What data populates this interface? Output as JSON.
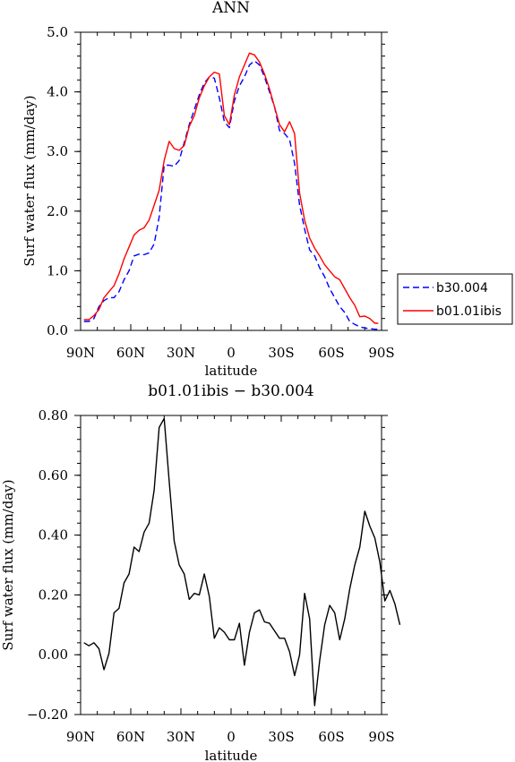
{
  "chart_data": [
    {
      "type": "line",
      "title": "ANN",
      "xlabel": "latitude",
      "ylabel": "Surf water flux (mm/day)",
      "xlim": [
        90,
        -90
      ],
      "ylim": [
        0,
        5
      ],
      "x_ticks": [
        {
          "value": 90,
          "label": "90N"
        },
        {
          "value": 60,
          "label": "60N"
        },
        {
          "value": 30,
          "label": "30N"
        },
        {
          "value": 0,
          "label": "0"
        },
        {
          "value": -30,
          "label": "30S"
        },
        {
          "value": -60,
          "label": "60S"
        },
        {
          "value": -90,
          "label": "90S"
        }
      ],
      "y_ticks": [
        {
          "value": 0,
          "label": "0.0"
        },
        {
          "value": 1,
          "label": "1.0"
        },
        {
          "value": 2,
          "label": "2.0"
        },
        {
          "value": 3,
          "label": "3.0"
        },
        {
          "value": 4,
          "label": "4.0"
        },
        {
          "value": 5,
          "label": "5.0"
        }
      ],
      "legend": "right",
      "series": [
        {
          "name": "b30.004",
          "color": "#0000ff",
          "dash": "dashed",
          "points": [
            [
              88,
              0.15
            ],
            [
              85,
              0.15
            ],
            [
              82,
              0.2
            ],
            [
              79,
              0.4
            ],
            [
              76,
              0.5
            ],
            [
              73,
              0.55
            ],
            [
              70,
              0.55
            ],
            [
              67,
              0.65
            ],
            [
              64,
              0.85
            ],
            [
              61,
              1.0
            ],
            [
              58,
              1.25
            ],
            [
              55,
              1.28
            ],
            [
              52,
              1.27
            ],
            [
              49,
              1.3
            ],
            [
              46,
              1.45
            ],
            [
              43,
              1.9
            ],
            [
              40,
              2.77
            ],
            [
              37,
              2.77
            ],
            [
              34,
              2.75
            ],
            [
              31,
              2.85
            ],
            [
              28,
              3.15
            ],
            [
              25,
              3.45
            ],
            [
              22,
              3.7
            ],
            [
              19,
              3.95
            ],
            [
              16,
              4.15
            ],
            [
              13,
              4.25
            ],
            [
              10,
              4.23
            ],
            [
              7,
              3.9
            ],
            [
              4,
              3.5
            ],
            [
              1,
              3.4
            ],
            [
              -2,
              3.85
            ],
            [
              -5,
              4.1
            ],
            [
              -8,
              4.25
            ],
            [
              -11,
              4.45
            ],
            [
              -14,
              4.52
            ],
            [
              -17,
              4.45
            ],
            [
              -20,
              4.25
            ],
            [
              -23,
              4.0
            ],
            [
              -26,
              3.75
            ],
            [
              -29,
              3.35
            ],
            [
              -32,
              3.3
            ],
            [
              -35,
              3.2
            ],
            [
              -38,
              2.8
            ],
            [
              -41,
              2.1
            ],
            [
              -44,
              1.7
            ],
            [
              -47,
              1.35
            ],
            [
              -50,
              1.25
            ],
            [
              -53,
              1.05
            ],
            [
              -56,
              0.9
            ],
            [
              -59,
              0.7
            ],
            [
              -62,
              0.55
            ],
            [
              -65,
              0.4
            ],
            [
              -68,
              0.3
            ],
            [
              -71,
              0.15
            ],
            [
              -74,
              0.1
            ],
            [
              -77,
              0.06
            ],
            [
              -80,
              0.04
            ],
            [
              -83,
              0.03
            ],
            [
              -86,
              0.02
            ],
            [
              -88,
              0.02
            ]
          ]
        },
        {
          "name": "b01.01ibis",
          "color": "#ff0000",
          "dash": "solid",
          "points": [
            [
              88,
              0.18
            ],
            [
              85,
              0.18
            ],
            [
              82,
              0.25
            ],
            [
              79,
              0.35
            ],
            [
              76,
              0.55
            ],
            [
              73,
              0.65
            ],
            [
              70,
              0.75
            ],
            [
              67,
              0.95
            ],
            [
              64,
              1.2
            ],
            [
              61,
              1.4
            ],
            [
              58,
              1.6
            ],
            [
              55,
              1.68
            ],
            [
              52,
              1.72
            ],
            [
              49,
              1.85
            ],
            [
              46,
              2.1
            ],
            [
              43,
              2.35
            ],
            [
              40,
              2.85
            ],
            [
              37,
              3.17
            ],
            [
              34,
              3.05
            ],
            [
              31,
              3.02
            ],
            [
              28,
              3.1
            ],
            [
              25,
              3.42
            ],
            [
              22,
              3.6
            ],
            [
              19,
              3.9
            ],
            [
              16,
              4.1
            ],
            [
              13,
              4.25
            ],
            [
              10,
              4.33
            ],
            [
              7,
              4.3
            ],
            [
              4,
              3.6
            ],
            [
              1,
              3.45
            ],
            [
              -2,
              3.95
            ],
            [
              -5,
              4.25
            ],
            [
              -8,
              4.45
            ],
            [
              -11,
              4.65
            ],
            [
              -14,
              4.62
            ],
            [
              -17,
              4.5
            ],
            [
              -20,
              4.3
            ],
            [
              -23,
              4.05
            ],
            [
              -26,
              3.75
            ],
            [
              -29,
              3.45
            ],
            [
              -32,
              3.33
            ],
            [
              -35,
              3.5
            ],
            [
              -38,
              3.3
            ],
            [
              -41,
              2.3
            ],
            [
              -44,
              1.85
            ],
            [
              -47,
              1.55
            ],
            [
              -50,
              1.38
            ],
            [
              -53,
              1.25
            ],
            [
              -56,
              1.1
            ],
            [
              -59,
              1.0
            ],
            [
              -62,
              0.9
            ],
            [
              -65,
              0.85
            ],
            [
              -68,
              0.7
            ],
            [
              -71,
              0.55
            ],
            [
              -74,
              0.42
            ],
            [
              -77,
              0.23
            ],
            [
              -80,
              0.24
            ],
            [
              -83,
              0.2
            ],
            [
              -86,
              0.12
            ],
            [
              -88,
              0.12
            ]
          ]
        }
      ]
    },
    {
      "type": "line",
      "title": "b01.01ibis − b30.004",
      "xlabel": "latitude",
      "ylabel": "Surf water flux (mm/day)",
      "xlim": [
        90,
        -90
      ],
      "ylim": [
        -0.2,
        0.8
      ],
      "x_ticks": [
        {
          "value": 90,
          "label": "90N"
        },
        {
          "value": 60,
          "label": "60N"
        },
        {
          "value": 30,
          "label": "30N"
        },
        {
          "value": 0,
          "label": "0"
        },
        {
          "value": -30,
          "label": "30S"
        },
        {
          "value": -60,
          "label": "60S"
        },
        {
          "value": -90,
          "label": "90S"
        }
      ],
      "y_ticks": [
        {
          "value": -0.2,
          "label": "−0.20"
        },
        {
          "value": 0,
          "label": "0.00"
        },
        {
          "value": 0.2,
          "label": "0.20"
        },
        {
          "value": 0.4,
          "label": "0.40"
        },
        {
          "value": 0.6,
          "label": "0.60"
        },
        {
          "value": 0.8,
          "label": "0.80"
        }
      ],
      "series": [
        {
          "color": "#000000",
          "dash": "solid",
          "points": [
            [
              88,
              0.04
            ],
            [
              85,
              0.03
            ],
            [
              82,
              0.04
            ],
            [
              79,
              0.02
            ],
            [
              76,
              -0.05
            ],
            [
              73,
              0.005
            ],
            [
              70,
              0.14
            ],
            [
              67,
              0.155
            ],
            [
              64,
              0.24
            ],
            [
              61,
              0.27
            ],
            [
              58,
              0.36
            ],
            [
              55,
              0.345
            ],
            [
              52,
              0.41
            ],
            [
              49,
              0.44
            ],
            [
              46,
              0.55
            ],
            [
              43,
              0.76
            ],
            [
              40,
              0.79
            ],
            [
              37,
              0.58
            ],
            [
              34,
              0.38
            ],
            [
              31,
              0.3
            ],
            [
              28,
              0.27
            ],
            [
              25,
              0.185
            ],
            [
              22,
              0.205
            ],
            [
              19,
              0.2
            ],
            [
              16,
              0.27
            ],
            [
              13,
              0.195
            ],
            [
              10,
              0.055
            ],
            [
              7,
              0.09
            ],
            [
              4,
              0.075
            ],
            [
              1,
              0.05
            ],
            [
              -2,
              0.05
            ],
            [
              -5,
              0.105
            ],
            [
              -8,
              -0.035
            ],
            [
              -11,
              0.075
            ],
            [
              -14,
              0.14
            ],
            [
              -17,
              0.15
            ],
            [
              -20,
              0.11
            ],
            [
              -23,
              0.105
            ],
            [
              -26,
              0.08
            ],
            [
              -29,
              0.055
            ],
            [
              -32,
              0.055
            ],
            [
              -35,
              0.01
            ],
            [
              -38,
              -0.07
            ],
            [
              -41,
              0.0
            ],
            [
              -44,
              0.205
            ],
            [
              -47,
              0.12
            ],
            [
              -50,
              -0.17
            ],
            [
              -53,
              -0.02
            ],
            [
              -56,
              0.1
            ],
            [
              -59,
              0.165
            ],
            [
              -62,
              0.14
            ],
            [
              -65,
              0.05
            ],
            [
              -68,
              0.12
            ],
            [
              -71,
              0.22
            ],
            [
              -74,
              0.3
            ],
            [
              -77,
              0.36
            ],
            [
              -80,
              0.48
            ],
            [
              -83,
              0.43
            ],
            [
              -86,
              0.39
            ],
            [
              -89,
              0.31
            ],
            [
              -92,
              0.18
            ],
            [
              -95,
              0.215
            ],
            [
              -98,
              0.17
            ],
            [
              -101,
              0.1
            ]
          ]
        }
      ]
    }
  ]
}
